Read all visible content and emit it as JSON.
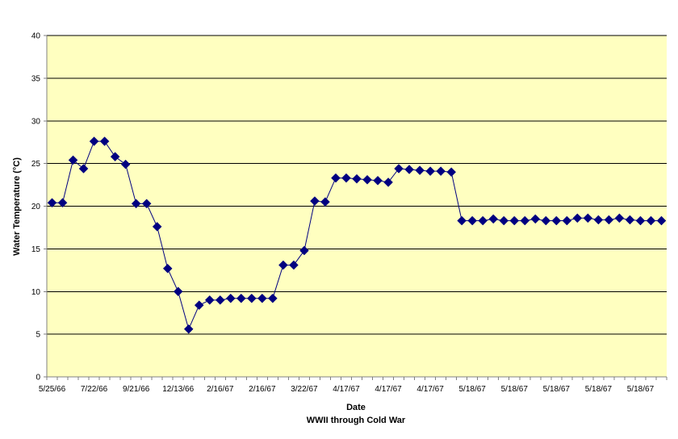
{
  "colors": {
    "plot_background": "#FFFFC0",
    "series": "#000080",
    "gridline": "#000000",
    "axis": "#808080"
  },
  "chart_data": {
    "type": "line",
    "xlabel": "Date",
    "xlabel_sub": "WWII through Cold War",
    "ylabel": "Water Temperature (°C)",
    "ylim": [
      0,
      40
    ],
    "y_ticks": [
      0,
      5,
      10,
      15,
      20,
      25,
      30,
      35,
      40
    ],
    "grid": true,
    "legend": "none",
    "x_tick_labels": [
      "5/25/66",
      "7/22/66",
      "9/21/66",
      "12/13/66",
      "2/16/67",
      "2/16/67",
      "3/22/67",
      "4/17/67",
      "4/17/67",
      "4/17/67",
      "5/18/67",
      "5/18/67",
      "5/18/67",
      "5/18/67",
      "5/18/67"
    ],
    "x_tick_every": 4,
    "series": [
      {
        "marker": "diamond",
        "values": [
          20.4,
          20.4,
          25.4,
          24.4,
          27.6,
          27.6,
          25.8,
          24.9,
          20.3,
          20.3,
          17.6,
          12.7,
          10.0,
          5.6,
          8.4,
          9.0,
          9.0,
          9.2,
          9.2,
          9.2,
          9.2,
          9.2,
          13.1,
          13.1,
          14.8,
          20.6,
          20.5,
          23.3,
          23.3,
          23.2,
          23.1,
          23.0,
          22.8,
          24.4,
          24.3,
          24.2,
          24.1,
          24.1,
          24.0,
          18.3,
          18.3,
          18.3,
          18.5,
          18.3,
          18.3,
          18.3,
          18.5,
          18.3,
          18.3,
          18.3,
          18.6,
          18.6,
          18.4,
          18.4,
          18.6,
          18.4,
          18.3,
          18.3,
          18.3
        ]
      }
    ]
  }
}
